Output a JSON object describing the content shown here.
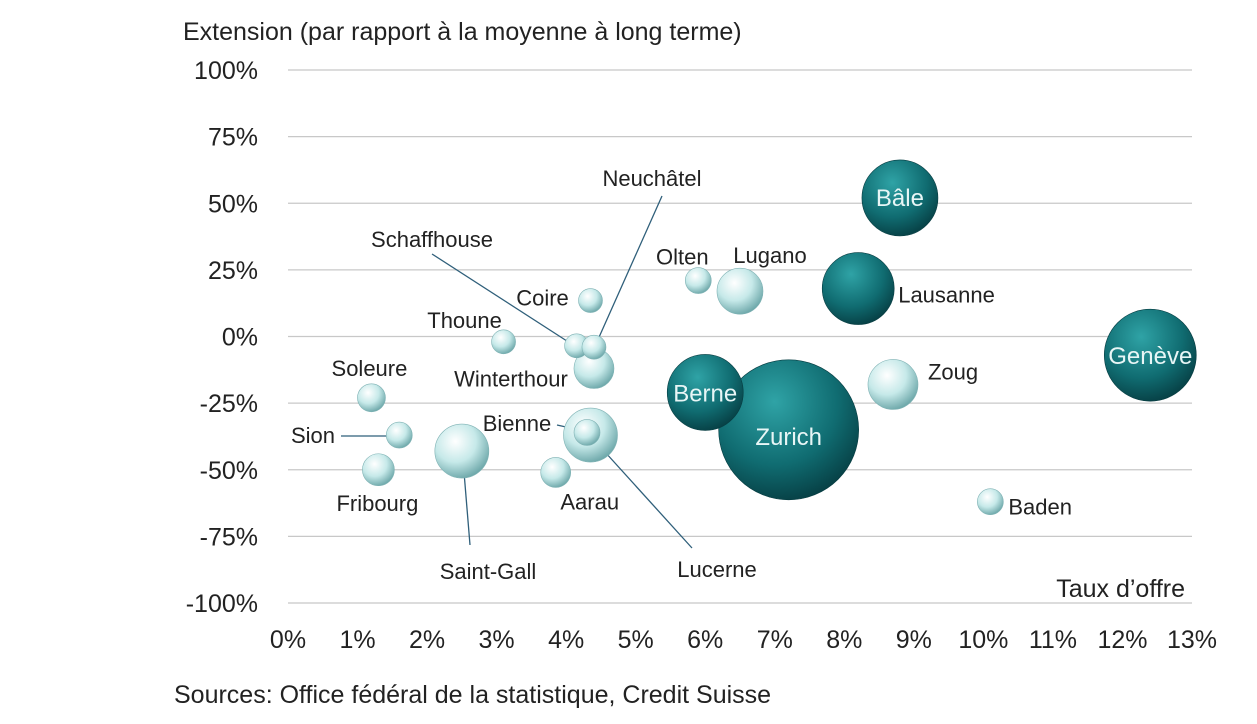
{
  "chart_data": {
    "type": "scatter",
    "subtype": "bubble",
    "title": "",
    "ylabel": "Extension (par rapport à la moyenne à long terme)",
    "xlabel": "Taux d’offre",
    "xlim": [
      0,
      13
    ],
    "ylim": [
      -100,
      100
    ],
    "x_ticks": [
      "0%",
      "1%",
      "2%",
      "3%",
      "4%",
      "5%",
      "6%",
      "7%",
      "8%",
      "9%",
      "10%",
      "11%",
      "12%",
      "13%"
    ],
    "y_ticks": [
      "100%",
      "75%",
      "50%",
      "25%",
      "0%",
      "-25%",
      "-50%",
      "-75%",
      "-100%"
    ],
    "grid": "horizontal",
    "colors": {
      "large_city": "#0f6e72",
      "other_city": "#bfe6e6",
      "grid": "#c8c8c8",
      "leader_line": "#2f5f7a"
    },
    "points": [
      {
        "name": "Bâle",
        "x": 8.8,
        "y": 52,
        "size": 38,
        "group": "large_city"
      },
      {
        "name": "Lausanne",
        "x": 8.2,
        "y": 18,
        "size": 36,
        "group": "large_city"
      },
      {
        "name": "Genève",
        "x": 12.4,
        "y": -7,
        "size": 46,
        "group": "large_city"
      },
      {
        "name": "Berne",
        "x": 6.0,
        "y": -21,
        "size": 38,
        "group": "large_city"
      },
      {
        "name": "Zurich",
        "x": 7.2,
        "y": -35,
        "size": 70,
        "group": "large_city"
      },
      {
        "name": "Zoug",
        "x": 8.7,
        "y": -18,
        "size": 25,
        "group": "other_city"
      },
      {
        "name": "Baden",
        "x": 10.1,
        "y": -62,
        "size": 13,
        "group": "other_city"
      },
      {
        "name": "Olten",
        "x": 5.9,
        "y": 21,
        "size": 13,
        "group": "other_city"
      },
      {
        "name": "Lugano",
        "x": 6.5,
        "y": 17,
        "size": 23,
        "group": "other_city"
      },
      {
        "name": "Coire",
        "x": 4.35,
        "y": 13.5,
        "size": 12,
        "group": "other_city"
      },
      {
        "name": "Thoune",
        "x": 3.1,
        "y": -2,
        "size": 12,
        "group": "other_city"
      },
      {
        "name": "Schaffhouse",
        "x": 4.15,
        "y": -3.5,
        "size": 12,
        "group": "other_city"
      },
      {
        "name": "Neuchâtel",
        "x": 4.4,
        "y": -4,
        "size": 12,
        "group": "other_city"
      },
      {
        "name": "Winterthour",
        "x": 4.4,
        "y": -12,
        "size": 20,
        "group": "other_city"
      },
      {
        "name": "Soleure",
        "x": 1.2,
        "y": -23,
        "size": 14,
        "group": "other_city"
      },
      {
        "name": "Sion",
        "x": 1.6,
        "y": -37,
        "size": 13,
        "group": "other_city"
      },
      {
        "name": "Fribourg",
        "x": 1.3,
        "y": -50,
        "size": 16,
        "group": "other_city"
      },
      {
        "name": "Saint-Gall",
        "x": 2.5,
        "y": -43,
        "size": 27,
        "group": "other_city"
      },
      {
        "name": "Lucerne",
        "x": 4.35,
        "y": -37,
        "size": 27,
        "group": "other_city"
      },
      {
        "name": "Bienne",
        "x": 4.3,
        "y": -36,
        "size": 13,
        "group": "other_city"
      },
      {
        "name": "Aarau",
        "x": 3.85,
        "y": -51,
        "size": 15,
        "group": "other_city"
      }
    ],
    "source": "Sources: Office fédéral de la statistique, Credit Suisse"
  }
}
